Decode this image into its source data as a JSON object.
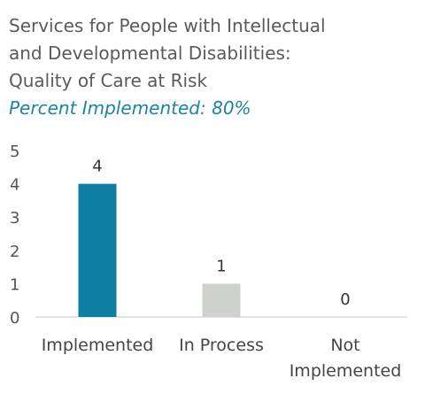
{
  "title": {
    "lines": [
      "Services for People with Intellectual",
      "and Developmental Disabilities:",
      "Quality of Care at Risk"
    ],
    "subtitle": "Percent Implemented: 80%"
  },
  "colors": {
    "title": "#5a5a5a",
    "subtitle": "#1a84a6",
    "implemented": "#0e7ea3",
    "in_process": "#cfd1cf",
    "not_implemented": "#cfd1cf",
    "axis": "#c8c8c8",
    "tick_text": "#555555",
    "label_text": "#444444"
  },
  "chart_data": {
    "type": "bar",
    "title": "Services for People with Intellectual and Developmental Disabilities: Quality of Care at Risk",
    "subtitle": "Percent Implemented: 80%",
    "categories": [
      "Implemented",
      "In Process",
      "Not Implemented"
    ],
    "category_labels": [
      [
        "Implemented"
      ],
      [
        "In Process"
      ],
      [
        "Not",
        "Implemented"
      ]
    ],
    "values": [
      4,
      1,
      0
    ],
    "data_labels": [
      "4",
      "1",
      "0"
    ],
    "bar_colors": [
      "#0e7ea3",
      "#cfd1cf",
      "#cfd1cf"
    ],
    "ylim": [
      0,
      5
    ],
    "yticks": [
      "0",
      "1",
      "2",
      "3",
      "4",
      "5"
    ],
    "xlabel": "",
    "ylabel": "",
    "grid": false,
    "legend": "none"
  }
}
